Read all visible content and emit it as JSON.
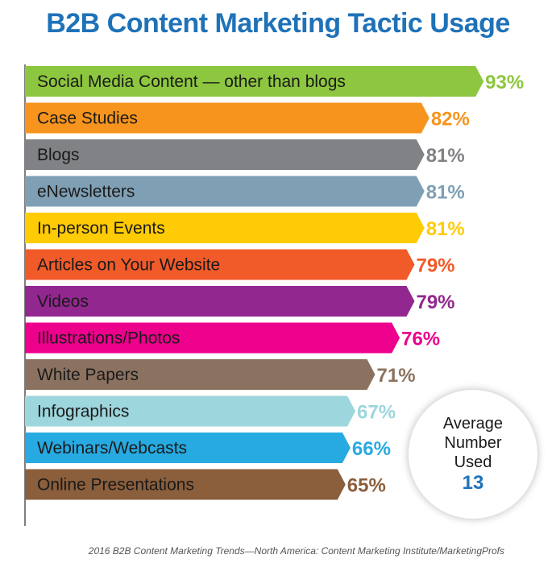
{
  "chart_data": {
    "type": "bar",
    "orientation": "horizontal",
    "title": "B2B Content Marketing Tactic Usage",
    "categories": [
      "Social Media Content — other than blogs",
      "Case Studies",
      "Blogs",
      "eNewsletters",
      "In-person Events",
      "Articles on Your Website",
      "Videos",
      "Illustrations/Photos",
      "White Papers",
      "Infographics",
      "Webinars/Webcasts",
      "Online Presentations"
    ],
    "values": [
      93,
      82,
      81,
      81,
      81,
      79,
      79,
      76,
      71,
      67,
      66,
      65
    ],
    "value_labels": [
      "93%",
      "82%",
      "81%",
      "81%",
      "81%",
      "79%",
      "79%",
      "76%",
      "71%",
      "67%",
      "66%",
      "65%"
    ],
    "colors": [
      "#8dc63f",
      "#f7941d",
      "#808285",
      "#7f9fb5",
      "#ffcb05",
      "#f15a29",
      "#92278f",
      "#ec008c",
      "#8b7260",
      "#9dd6dc",
      "#27aae1",
      "#8b5e3c"
    ],
    "xlim": [
      0,
      100
    ],
    "grid": false,
    "legend": "none"
  },
  "callout": {
    "line1": "Average",
    "line2": "Number",
    "line3": "Used",
    "number": "13"
  },
  "source": "2016 B2B Content Marketing Trends—North America: Content Marketing Institute/MarketingProfs"
}
